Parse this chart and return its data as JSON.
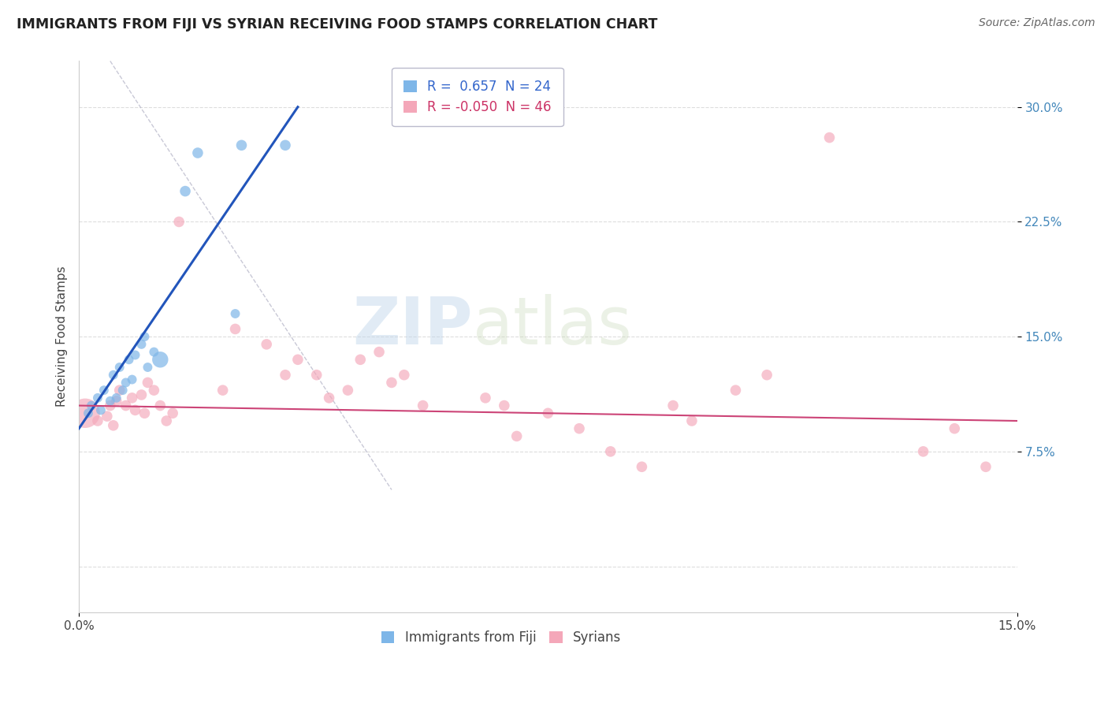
{
  "title": "IMMIGRANTS FROM FIJI VS SYRIAN RECEIVING FOOD STAMPS CORRELATION CHART",
  "source": "Source: ZipAtlas.com",
  "ylabel": "Receiving Food Stamps",
  "xlim": [
    0.0,
    15.0
  ],
  "ylim": [
    -3.0,
    33.0
  ],
  "fiji_color": "#7EB6E8",
  "syrian_color": "#F4A7B9",
  "fiji_line_color": "#2255BB",
  "syrian_line_color": "#CC4477",
  "fiji_R": 0.657,
  "fiji_N": 24,
  "syrian_R": -0.05,
  "syrian_N": 46,
  "fiji_label": "Immigrants from Fiji",
  "syrian_label": "Syrians",
  "watermark_zip": "ZIP",
  "watermark_atlas": "atlas",
  "grid_color": "#DDDDDD",
  "ref_line_color": "#BBBBCC",
  "fiji_points": [
    [
      0.15,
      10.0,
      7
    ],
    [
      0.2,
      10.5,
      7
    ],
    [
      0.3,
      11.0,
      7
    ],
    [
      0.35,
      10.2,
      7
    ],
    [
      0.4,
      11.5,
      7
    ],
    [
      0.5,
      10.8,
      7
    ],
    [
      0.55,
      12.5,
      7
    ],
    [
      0.6,
      11.0,
      7
    ],
    [
      0.65,
      13.0,
      7
    ],
    [
      0.7,
      11.5,
      7
    ],
    [
      0.75,
      12.0,
      7
    ],
    [
      0.8,
      13.5,
      7
    ],
    [
      0.85,
      12.2,
      7
    ],
    [
      0.9,
      13.8,
      7
    ],
    [
      1.0,
      14.5,
      7
    ],
    [
      1.05,
      15.0,
      7
    ],
    [
      1.1,
      13.0,
      7
    ],
    [
      1.2,
      14.0,
      7
    ],
    [
      1.3,
      13.5,
      12
    ],
    [
      1.7,
      24.5,
      8
    ],
    [
      1.9,
      27.0,
      8
    ],
    [
      2.5,
      16.5,
      7
    ],
    [
      2.6,
      27.5,
      8
    ],
    [
      3.3,
      27.5,
      8
    ]
  ],
  "syrian_points": [
    [
      0.1,
      10.0,
      22
    ],
    [
      0.3,
      9.5,
      8
    ],
    [
      0.45,
      9.8,
      8
    ],
    [
      0.5,
      10.5,
      8
    ],
    [
      0.55,
      9.2,
      8
    ],
    [
      0.6,
      10.8,
      8
    ],
    [
      0.65,
      11.5,
      8
    ],
    [
      0.75,
      10.5,
      8
    ],
    [
      0.85,
      11.0,
      8
    ],
    [
      0.9,
      10.2,
      8
    ],
    [
      1.0,
      11.2,
      8
    ],
    [
      1.05,
      10.0,
      8
    ],
    [
      1.1,
      12.0,
      8
    ],
    [
      1.2,
      11.5,
      8
    ],
    [
      1.3,
      10.5,
      8
    ],
    [
      1.4,
      9.5,
      8
    ],
    [
      1.5,
      10.0,
      8
    ],
    [
      1.6,
      22.5,
      8
    ],
    [
      2.3,
      11.5,
      8
    ],
    [
      2.5,
      15.5,
      8
    ],
    [
      3.0,
      14.5,
      8
    ],
    [
      3.3,
      12.5,
      8
    ],
    [
      3.5,
      13.5,
      8
    ],
    [
      3.8,
      12.5,
      8
    ],
    [
      4.0,
      11.0,
      8
    ],
    [
      4.3,
      11.5,
      8
    ],
    [
      4.5,
      13.5,
      8
    ],
    [
      4.8,
      14.0,
      8
    ],
    [
      5.0,
      12.0,
      8
    ],
    [
      5.2,
      12.5,
      8
    ],
    [
      5.5,
      10.5,
      8
    ],
    [
      6.5,
      11.0,
      8
    ],
    [
      6.8,
      10.5,
      8
    ],
    [
      7.0,
      8.5,
      8
    ],
    [
      7.5,
      10.0,
      8
    ],
    [
      8.0,
      9.0,
      8
    ],
    [
      8.5,
      7.5,
      8
    ],
    [
      9.0,
      6.5,
      8
    ],
    [
      9.5,
      10.5,
      8
    ],
    [
      9.8,
      9.5,
      8
    ],
    [
      10.5,
      11.5,
      8
    ],
    [
      11.0,
      12.5,
      8
    ],
    [
      12.0,
      28.0,
      8
    ],
    [
      13.5,
      7.5,
      8
    ],
    [
      14.0,
      9.0,
      8
    ],
    [
      14.5,
      6.5,
      8
    ]
  ]
}
